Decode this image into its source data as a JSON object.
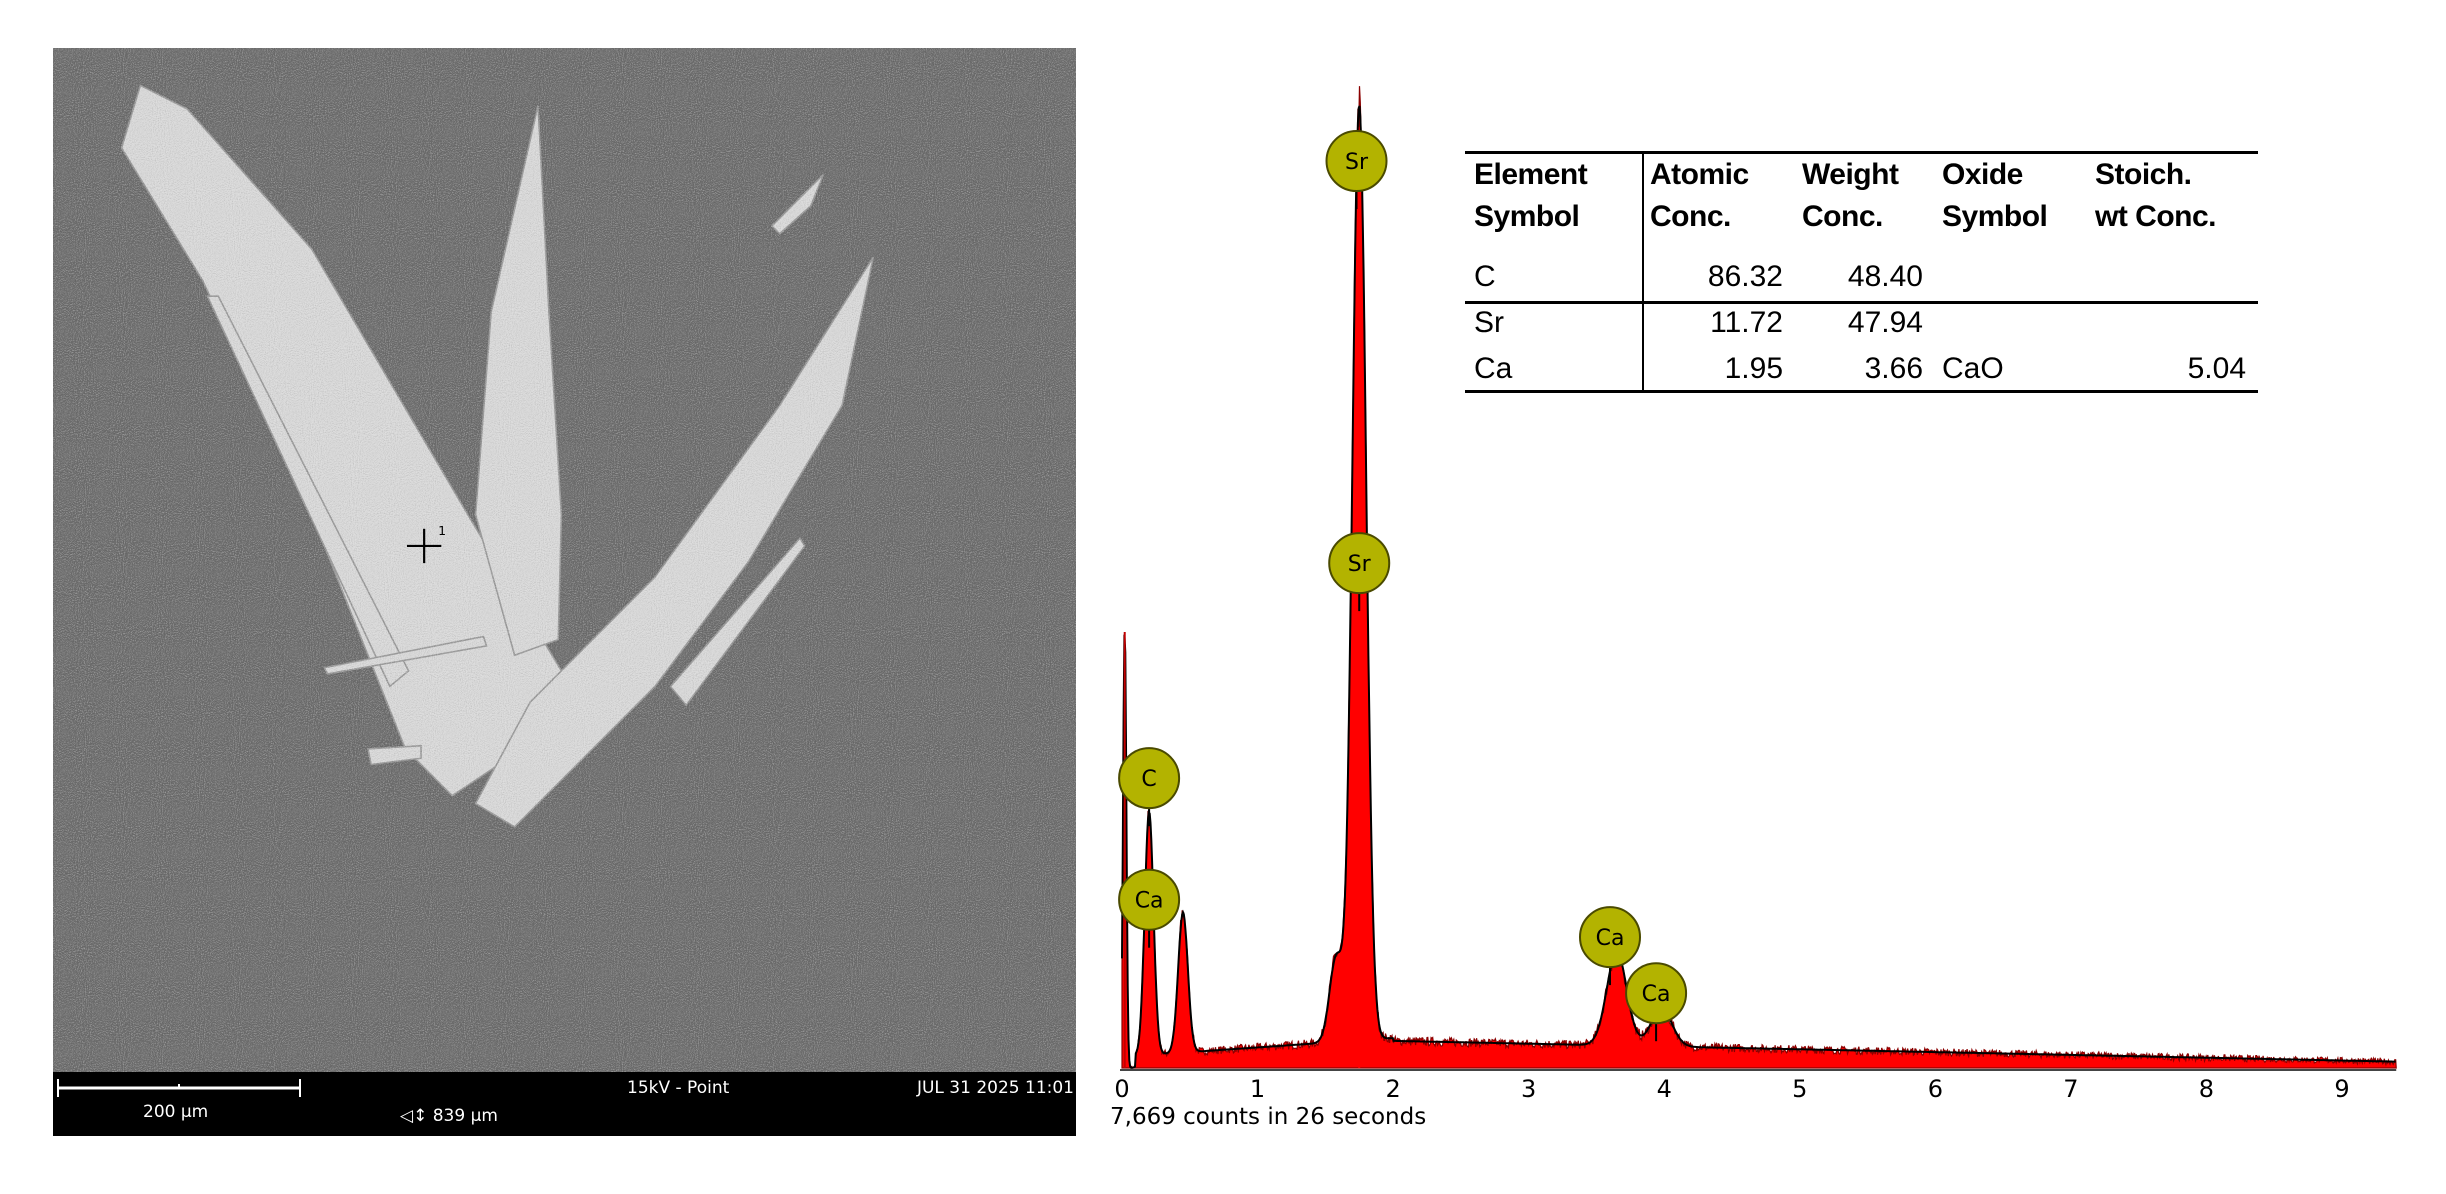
{
  "sem_image": {
    "scale_bar_label": "200 µm",
    "field_width": "839 µm",
    "mode": "15kV - Point",
    "datetime": "JUL 31 2025 11:01",
    "point_marker_label": "1"
  },
  "table": {
    "headers": [
      [
        "Element",
        "Symbol"
      ],
      [
        "Atomic",
        "Conc."
      ],
      [
        "Weight",
        "Conc."
      ],
      [
        "Oxide",
        "Symbol"
      ],
      [
        "Stoich.",
        "wt Conc."
      ]
    ],
    "rows": [
      {
        "element": "C",
        "atomic": "86.32",
        "weight": "48.40",
        "oxide": "",
        "stoich": ""
      },
      {
        "element": "Sr",
        "atomic": "11.72",
        "weight": "47.94",
        "oxide": "",
        "stoich": ""
      },
      {
        "element": "Ca",
        "atomic": "1.95",
        "weight": "3.66",
        "oxide": "CaO",
        "stoich": "5.04"
      }
    ]
  },
  "chart_data": {
    "type": "area",
    "xlabel": "",
    "ylabel": "",
    "xlim": [
      0,
      9.4
    ],
    "x_ticks": [
      "0",
      "1",
      "2",
      "3",
      "4",
      "5",
      "6",
      "7",
      "8",
      "9"
    ],
    "grid": false,
    "caption": "7,669 counts in 26 seconds",
    "fill_color": "#ff0000",
    "marker_color": "#b3b300",
    "peaks_relative_intensity": [
      {
        "energy_keV": 0.02,
        "relative": 0.47
      },
      {
        "energy_keV": 0.2,
        "relative": 0.26
      },
      {
        "energy_keV": 0.45,
        "relative": 0.15
      },
      {
        "energy_keV": 1.58,
        "relative": 0.09
      },
      {
        "energy_keV": 1.75,
        "relative": 1.0
      },
      {
        "energy_keV": 3.65,
        "relative": 0.1
      },
      {
        "energy_keV": 3.98,
        "relative": 0.04
      }
    ],
    "peak_labels": [
      {
        "label": "Sr",
        "energy_keV": 1.73,
        "level": 0.97
      },
      {
        "label": "Sr",
        "energy_keV": 1.75,
        "level": 0.54
      },
      {
        "label": "C",
        "energy_keV": 0.2,
        "level": 0.31
      },
      {
        "label": "Ca",
        "energy_keV": 0.2,
        "level": 0.18
      },
      {
        "label": "Ca",
        "energy_keV": 3.6,
        "level": 0.14
      },
      {
        "label": "Ca",
        "energy_keV": 3.94,
        "level": 0.08
      }
    ]
  }
}
